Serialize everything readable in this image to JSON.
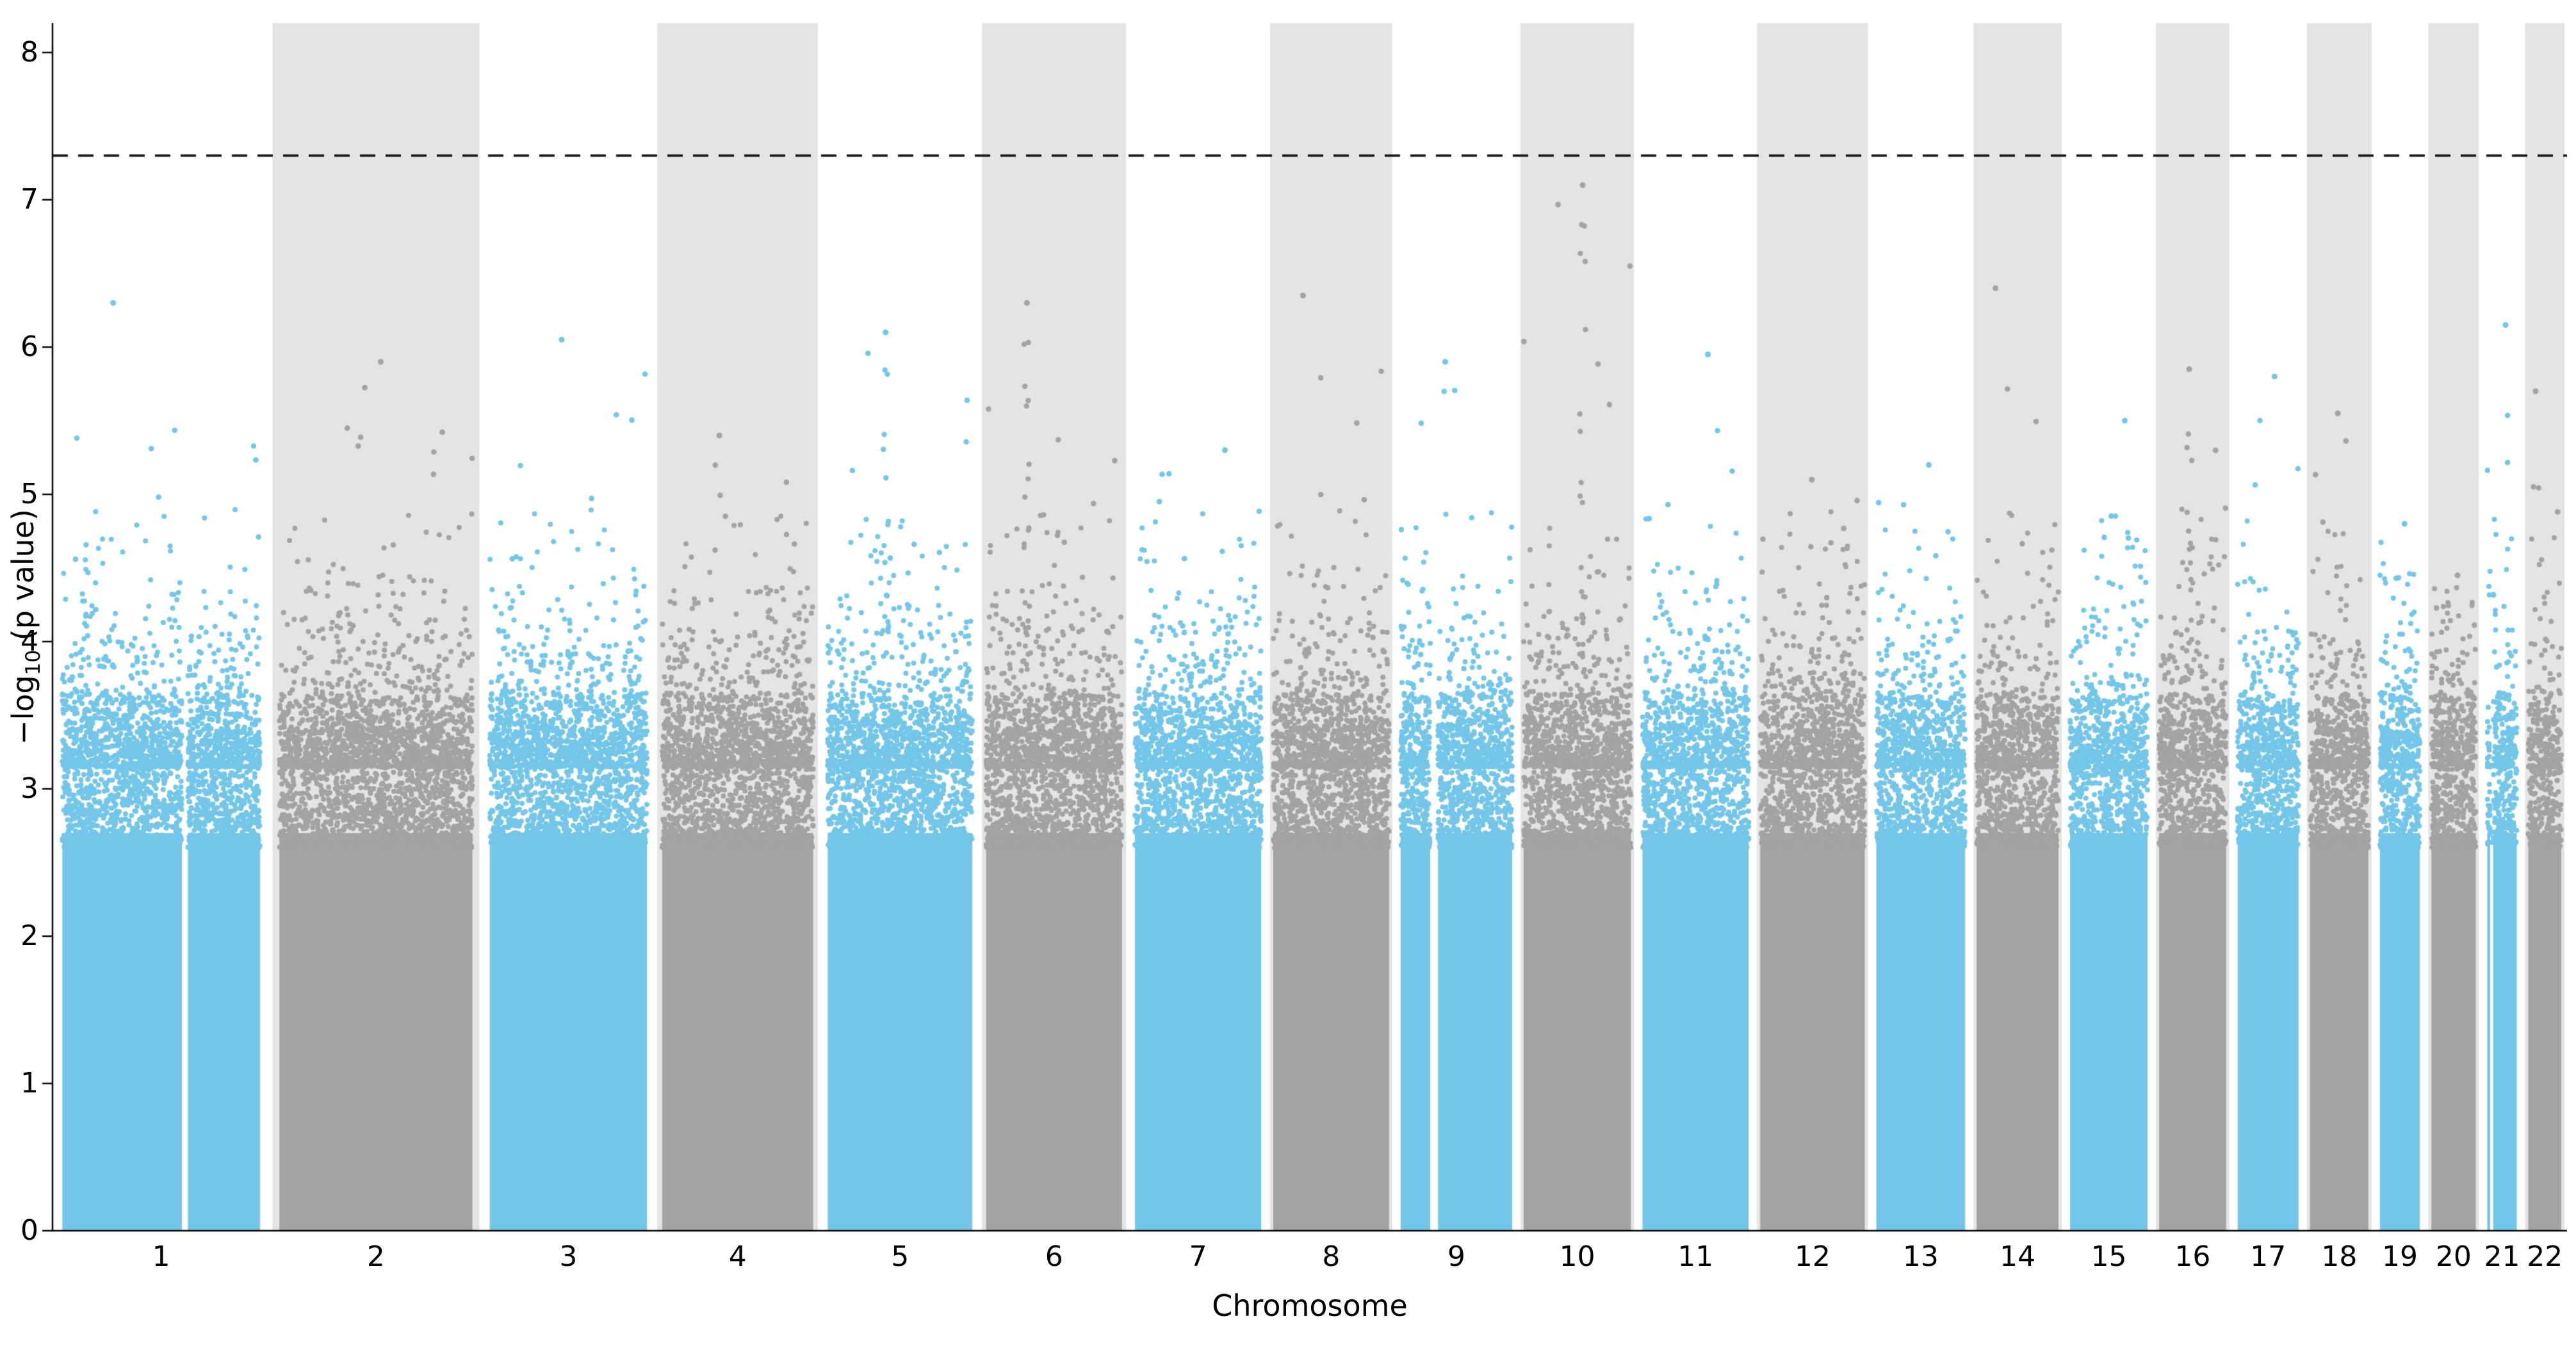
{
  "chart_data": {
    "type": "scatter",
    "variant": "manhattan",
    "title": "",
    "xlabel": "Chromosome",
    "ylabel": "-log10 (p value)",
    "ylabel_parts": {
      "prefix": "−log",
      "sub": "10",
      "suffix": " (p value)"
    },
    "ylim": [
      0,
      8.2
    ],
    "yticks": [
      0,
      1,
      2,
      3,
      4,
      5,
      6,
      7,
      8
    ],
    "grid": false,
    "legend": null,
    "significance_line": {
      "y": 7.3,
      "style": "dashed",
      "color": "#111111"
    },
    "colors": {
      "odd_chromosome": "#74c6e8",
      "even_chromosome": "#a3a3a3",
      "band_background": "#e4e4e4",
      "axis": "#000000",
      "text": "#000000"
    },
    "point_base_ceiling": 3.4,
    "chromosomes": [
      {
        "label": "1",
        "size_mb": 249,
        "peak": 6.3,
        "gap_pos": 0.62,
        "gap_w": 0.03
      },
      {
        "label": "2",
        "size_mb": 243,
        "peak": 5.9
      },
      {
        "label": "3",
        "size_mb": 198,
        "peak": 6.05
      },
      {
        "label": "4",
        "size_mb": 190,
        "peak": 5.4
      },
      {
        "label": "5",
        "size_mb": 182,
        "peak": 6.1,
        "cluster_pos": 0.4
      },
      {
        "label": "6",
        "size_mb": 171,
        "peak": 6.3,
        "cluster_pos": 0.3
      },
      {
        "label": "7",
        "size_mb": 159,
        "peak": 5.3
      },
      {
        "label": "8",
        "size_mb": 146,
        "peak": 6.35
      },
      {
        "label": "9",
        "size_mb": 141,
        "peak": 5.9,
        "gap_pos": 0.3,
        "gap_w": 0.07
      },
      {
        "label": "10",
        "size_mb": 136,
        "peak": 7.1,
        "cluster_pos": 0.55
      },
      {
        "label": "11",
        "size_mb": 135,
        "peak": 5.95
      },
      {
        "label": "12",
        "size_mb": 133,
        "peak": 5.1
      },
      {
        "label": "13",
        "size_mb": 115,
        "peak": 5.2
      },
      {
        "label": "14",
        "size_mb": 107,
        "peak": 6.4
      },
      {
        "label": "15",
        "size_mb": 102,
        "peak": 5.5
      },
      {
        "label": "16",
        "size_mb": 90,
        "peak": 5.85,
        "cluster_pos": 0.45
      },
      {
        "label": "17",
        "size_mb": 83,
        "peak": 5.8
      },
      {
        "label": "18",
        "size_mb": 80,
        "peak": 5.55
      },
      {
        "label": "19",
        "size_mb": 59,
        "peak": 4.8
      },
      {
        "label": "20",
        "size_mb": 64,
        "peak": 4.45
      },
      {
        "label": "21",
        "size_mb": 47,
        "peak": 6.15,
        "gap_pos": 0.15,
        "gap_w": 0.1
      },
      {
        "label": "22",
        "size_mb": 51,
        "peak": 5.7
      }
    ]
  }
}
